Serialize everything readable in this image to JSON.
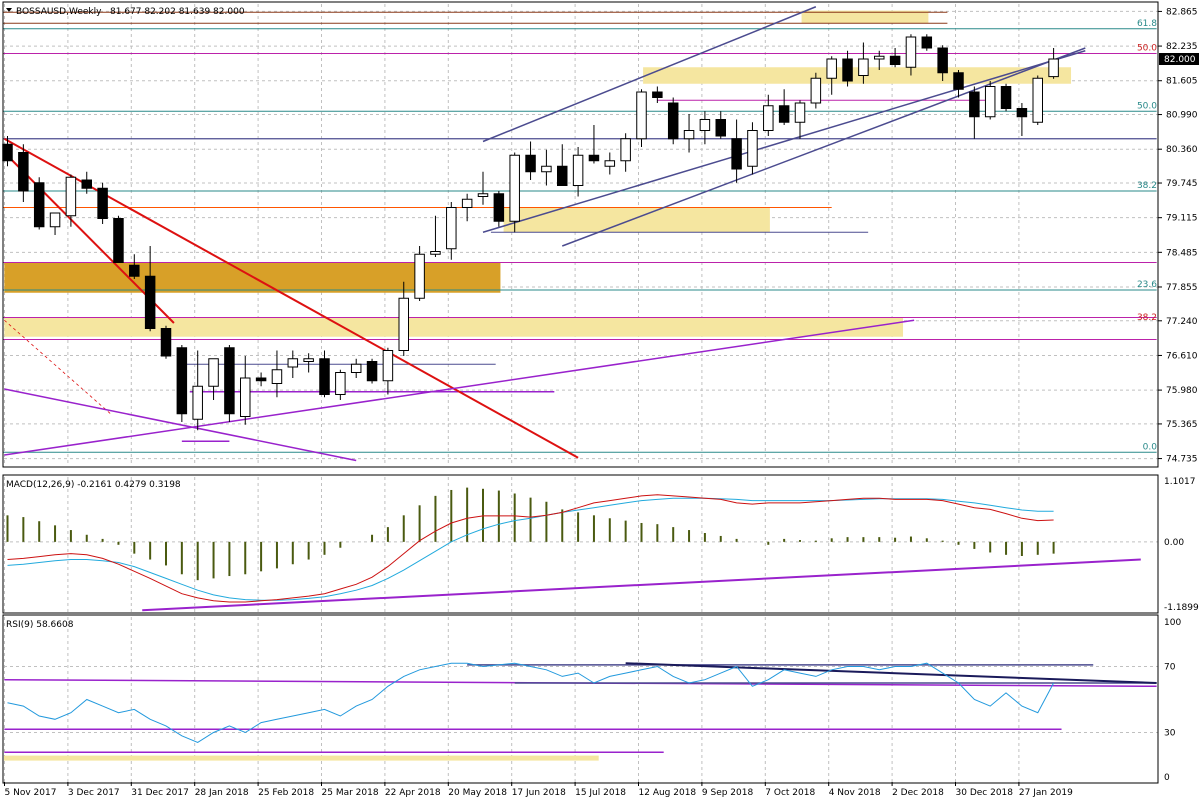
{
  "window": {
    "title": "BOSSAUSD,Weekly",
    "ohlc": "81.677 82.202 81.639 82.000",
    "dropdown_icon": "triangle-down-icon"
  },
  "colors": {
    "background": "#ffffff",
    "grid": "#c0c0c0",
    "bull_fill": "#ffffff",
    "bear_fill": "#000000",
    "candle_outline": "#000000",
    "trend_red": "#dd1111",
    "channel": "#4b4b8f",
    "magenta": "#bb22aa",
    "orange": "#ff5500",
    "brown": "#8b3a1a",
    "teal": "#2a8a8a",
    "zone_yellow": "#f5e6a0",
    "zone_gold": "#d8a028",
    "macd_hist": "#4a5a10",
    "macd_line": "#cc1111",
    "signal_line": "#22aadd",
    "rsi_line": "#2299dd",
    "purple": "#9922cc",
    "navy": "#1a1a5a"
  },
  "chart_data": [
    {
      "type": "candlestick",
      "panel": "price",
      "symbol": "BOSSAUSD",
      "timeframe": "Weekly",
      "ylim": [
        74.6,
        83.0
      ],
      "y_ticks": [
        "82.865",
        "82.235",
        "81.605",
        "80.990",
        "80.360",
        "79.745",
        "79.115",
        "78.485",
        "77.855",
        "77.240",
        "76.610",
        "75.980",
        "75.365",
        "74.735"
      ],
      "current_price_label": "82.000",
      "x_labels": [
        "5 Nov 2017",
        "3 Dec 2017",
        "31 Dec 2017",
        "28 Jan 2018",
        "25 Feb 2018",
        "25 Mar 2018",
        "22 Apr 2018",
        "20 May 2018",
        "17 Jun 2018",
        "15 Jul 2018",
        "12 Aug 2018",
        "9 Sep 2018",
        "7 Oct 2018",
        "4 Nov 2018",
        "2 Dec 2018",
        "30 Dec 2018",
        "27 Jan 2019"
      ],
      "fib_labels": [
        "61.8",
        "50.0",
        "50.0",
        "38.2",
        "23.6",
        "38.2",
        "0.0"
      ],
      "candles": [
        {
          "o": 80.45,
          "h": 80.6,
          "l": 80.05,
          "c": 80.15
        },
        {
          "o": 80.3,
          "h": 80.45,
          "l": 79.4,
          "c": 79.6
        },
        {
          "o": 79.75,
          "h": 79.85,
          "l": 78.9,
          "c": 78.95
        },
        {
          "o": 78.95,
          "h": 79.2,
          "l": 78.8,
          "c": 79.2
        },
        {
          "o": 79.15,
          "h": 79.9,
          "l": 78.95,
          "c": 79.85
        },
        {
          "o": 79.8,
          "h": 79.95,
          "l": 79.55,
          "c": 79.65
        },
        {
          "o": 79.65,
          "h": 79.75,
          "l": 79.0,
          "c": 79.1
        },
        {
          "o": 79.1,
          "h": 79.15,
          "l": 78.3,
          "c": 78.3
        },
        {
          "o": 78.25,
          "h": 78.45,
          "l": 78.0,
          "c": 78.05
        },
        {
          "o": 78.05,
          "h": 78.6,
          "l": 77.05,
          "c": 77.1
        },
        {
          "o": 77.1,
          "h": 77.15,
          "l": 76.55,
          "c": 76.6
        },
        {
          "o": 76.75,
          "h": 76.8,
          "l": 75.4,
          "c": 75.55
        },
        {
          "o": 75.45,
          "h": 76.7,
          "l": 75.25,
          "c": 76.05
        },
        {
          "o": 76.05,
          "h": 76.55,
          "l": 75.8,
          "c": 76.55
        },
        {
          "o": 76.75,
          "h": 76.8,
          "l": 75.4,
          "c": 75.55
        },
        {
          "o": 75.5,
          "h": 76.6,
          "l": 75.35,
          "c": 76.2
        },
        {
          "o": 76.2,
          "h": 76.3,
          "l": 76.05,
          "c": 76.15
        },
        {
          "o": 76.1,
          "h": 76.7,
          "l": 75.85,
          "c": 76.35
        },
        {
          "o": 76.4,
          "h": 76.7,
          "l": 76.2,
          "c": 76.55
        },
        {
          "o": 76.5,
          "h": 76.65,
          "l": 76.3,
          "c": 76.55
        },
        {
          "o": 76.55,
          "h": 76.7,
          "l": 75.85,
          "c": 75.9
        },
        {
          "o": 75.9,
          "h": 76.35,
          "l": 75.8,
          "c": 76.3
        },
        {
          "o": 76.3,
          "h": 76.55,
          "l": 76.2,
          "c": 76.45
        },
        {
          "o": 76.5,
          "h": 76.55,
          "l": 76.1,
          "c": 76.15
        },
        {
          "o": 76.15,
          "h": 76.75,
          "l": 75.9,
          "c": 76.7
        },
        {
          "o": 76.7,
          "h": 77.95,
          "l": 76.6,
          "c": 77.65
        },
        {
          "o": 77.65,
          "h": 78.6,
          "l": 77.6,
          "c": 78.45
        },
        {
          "o": 78.45,
          "h": 79.15,
          "l": 78.4,
          "c": 78.5
        },
        {
          "o": 78.55,
          "h": 79.4,
          "l": 78.35,
          "c": 79.3
        },
        {
          "o": 79.3,
          "h": 79.55,
          "l": 79.05,
          "c": 79.45
        },
        {
          "o": 79.5,
          "h": 79.95,
          "l": 79.35,
          "c": 79.55
        },
        {
          "o": 79.55,
          "h": 79.6,
          "l": 78.95,
          "c": 79.05
        },
        {
          "o": 79.05,
          "h": 80.3,
          "l": 78.85,
          "c": 80.25
        },
        {
          "o": 80.25,
          "h": 80.5,
          "l": 79.8,
          "c": 79.95
        },
        {
          "o": 79.95,
          "h": 80.35,
          "l": 79.7,
          "c": 80.05
        },
        {
          "o": 80.05,
          "h": 80.45,
          "l": 79.7,
          "c": 79.7
        },
        {
          "o": 79.7,
          "h": 80.4,
          "l": 79.5,
          "c": 80.25
        },
        {
          "o": 80.25,
          "h": 80.8,
          "l": 80.1,
          "c": 80.15
        },
        {
          "o": 80.05,
          "h": 80.3,
          "l": 79.9,
          "c": 80.15
        },
        {
          "o": 80.15,
          "h": 80.65,
          "l": 79.95,
          "c": 80.55
        },
        {
          "o": 80.55,
          "h": 81.45,
          "l": 80.4,
          "c": 81.4
        },
        {
          "o": 81.4,
          "h": 81.5,
          "l": 81.2,
          "c": 81.3
        },
        {
          "o": 81.2,
          "h": 81.3,
          "l": 80.45,
          "c": 80.55
        },
        {
          "o": 80.55,
          "h": 81.0,
          "l": 80.3,
          "c": 80.7
        },
        {
          "o": 80.7,
          "h": 81.05,
          "l": 80.45,
          "c": 80.9
        },
        {
          "o": 80.9,
          "h": 81.05,
          "l": 80.55,
          "c": 80.6
        },
        {
          "o": 80.55,
          "h": 80.9,
          "l": 79.75,
          "c": 80.0
        },
        {
          "o": 80.05,
          "h": 80.85,
          "l": 79.9,
          "c": 80.7
        },
        {
          "o": 80.7,
          "h": 81.35,
          "l": 80.6,
          "c": 81.15
        },
        {
          "o": 81.15,
          "h": 81.45,
          "l": 80.8,
          "c": 80.85
        },
        {
          "o": 80.85,
          "h": 81.25,
          "l": 80.55,
          "c": 81.2
        },
        {
          "o": 81.2,
          "h": 81.75,
          "l": 81.1,
          "c": 81.65
        },
        {
          "o": 81.65,
          "h": 82.05,
          "l": 81.35,
          "c": 82.0
        },
        {
          "o": 82.0,
          "h": 82.15,
          "l": 81.5,
          "c": 81.6
        },
        {
          "o": 81.7,
          "h": 82.3,
          "l": 81.55,
          "c": 82.0
        },
        {
          "o": 82.0,
          "h": 82.15,
          "l": 81.8,
          "c": 82.05
        },
        {
          "o": 82.05,
          "h": 82.2,
          "l": 81.85,
          "c": 81.9
        },
        {
          "o": 81.85,
          "h": 82.45,
          "l": 81.7,
          "c": 82.4
        },
        {
          "o": 82.4,
          "h": 82.45,
          "l": 82.15,
          "c": 82.2
        },
        {
          "o": 82.2,
          "h": 82.25,
          "l": 81.6,
          "c": 81.75
        },
        {
          "o": 81.75,
          "h": 81.8,
          "l": 81.3,
          "c": 81.45
        },
        {
          "o": 81.4,
          "h": 81.5,
          "l": 80.55,
          "c": 80.95
        },
        {
          "o": 80.95,
          "h": 81.6,
          "l": 80.9,
          "c": 81.5
        },
        {
          "o": 81.5,
          "h": 81.55,
          "l": 81.05,
          "c": 81.1
        },
        {
          "o": 81.1,
          "h": 81.2,
          "l": 80.6,
          "c": 80.95
        },
        {
          "o": 80.85,
          "h": 81.7,
          "l": 80.8,
          "c": 81.65
        },
        {
          "o": 81.68,
          "h": 82.2,
          "l": 81.64,
          "c": 82.0
        }
      ]
    },
    {
      "type": "bar",
      "panel": "macd",
      "title": "MACD(12,26,9) -0.2161 0.4279 0.3198",
      "y_ticks": [
        "1.1017",
        "0.00",
        "-1.1899"
      ],
      "ylim": [
        -1.19,
        1.1
      ],
      "histogram": [
        0.45,
        0.42,
        0.35,
        0.28,
        0.2,
        0.12,
        0.05,
        -0.05,
        -0.2,
        -0.3,
        -0.4,
        -0.55,
        -0.65,
        -0.62,
        -0.58,
        -0.55,
        -0.5,
        -0.45,
        -0.38,
        -0.3,
        -0.22,
        -0.1,
        0.0,
        0.12,
        0.25,
        0.45,
        0.62,
        0.78,
        0.88,
        0.92,
        0.9,
        0.87,
        0.82,
        0.75,
        0.68,
        0.55,
        0.5,
        0.45,
        0.4,
        0.36,
        0.32,
        0.3,
        0.25,
        0.2,
        0.15,
        0.1,
        0.05,
        0.0,
        -0.05,
        0.05,
        0.03,
        0.02,
        0.06,
        0.08,
        0.08,
        0.08,
        0.07,
        0.09,
        0.06,
        0.02,
        -0.05,
        -0.12,
        -0.18,
        -0.22,
        -0.24,
        -0.22,
        -0.2
      ],
      "macd_line": [
        -0.3,
        -0.28,
        -0.25,
        -0.22,
        -0.2,
        -0.22,
        -0.28,
        -0.38,
        -0.5,
        -0.62,
        -0.75,
        -0.88,
        -0.95,
        -1.0,
        -1.02,
        -1.02,
        -1.0,
        -0.98,
        -0.95,
        -0.92,
        -0.88,
        -0.8,
        -0.72,
        -0.6,
        -0.42,
        -0.2,
        0.02,
        0.18,
        0.32,
        0.4,
        0.44,
        0.44,
        0.44,
        0.42,
        0.45,
        0.5,
        0.58,
        0.66,
        0.7,
        0.74,
        0.78,
        0.8,
        0.78,
        0.76,
        0.74,
        0.72,
        0.66,
        0.64,
        0.66,
        0.66,
        0.66,
        0.68,
        0.7,
        0.72,
        0.74,
        0.74,
        0.72,
        0.72,
        0.72,
        0.7,
        0.64,
        0.58,
        0.55,
        0.48,
        0.4,
        0.36,
        0.37
      ],
      "signal_line": [
        -0.4,
        -0.38,
        -0.35,
        -0.32,
        -0.3,
        -0.3,
        -0.32,
        -0.35,
        -0.42,
        -0.52,
        -0.62,
        -0.72,
        -0.82,
        -0.9,
        -0.95,
        -0.98,
        -0.99,
        -0.99,
        -0.98,
        -0.96,
        -0.93,
        -0.88,
        -0.82,
        -0.74,
        -0.62,
        -0.48,
        -0.32,
        -0.16,
        0.0,
        0.12,
        0.22,
        0.3,
        0.36,
        0.4,
        0.45,
        0.5,
        0.54,
        0.58,
        0.62,
        0.66,
        0.7,
        0.72,
        0.74,
        0.74,
        0.74,
        0.73,
        0.72,
        0.7,
        0.7,
        0.7,
        0.7,
        0.7,
        0.7,
        0.71,
        0.72,
        0.73,
        0.73,
        0.73,
        0.73,
        0.72,
        0.69,
        0.66,
        0.62,
        0.58,
        0.54,
        0.52,
        0.52
      ]
    },
    {
      "type": "line",
      "panel": "rsi",
      "title": "RSI(9) 58.6608",
      "y_ticks": [
        "100",
        "70",
        "30",
        "0"
      ],
      "ylim": [
        0,
        100
      ],
      "rsi": [
        48,
        46,
        40,
        38,
        42,
        50,
        46,
        42,
        44,
        38,
        34,
        28,
        24,
        30,
        34,
        30,
        36,
        38,
        40,
        42,
        44,
        40,
        46,
        50,
        58,
        64,
        68,
        70,
        72,
        72,
        70,
        71,
        72,
        70,
        68,
        64,
        66,
        60,
        64,
        66,
        68,
        70,
        64,
        60,
        62,
        66,
        70,
        58,
        62,
        68,
        66,
        64,
        68,
        70,
        70,
        68,
        70,
        70,
        72,
        66,
        60,
        50,
        46,
        54,
        46,
        42,
        60
      ]
    }
  ]
}
